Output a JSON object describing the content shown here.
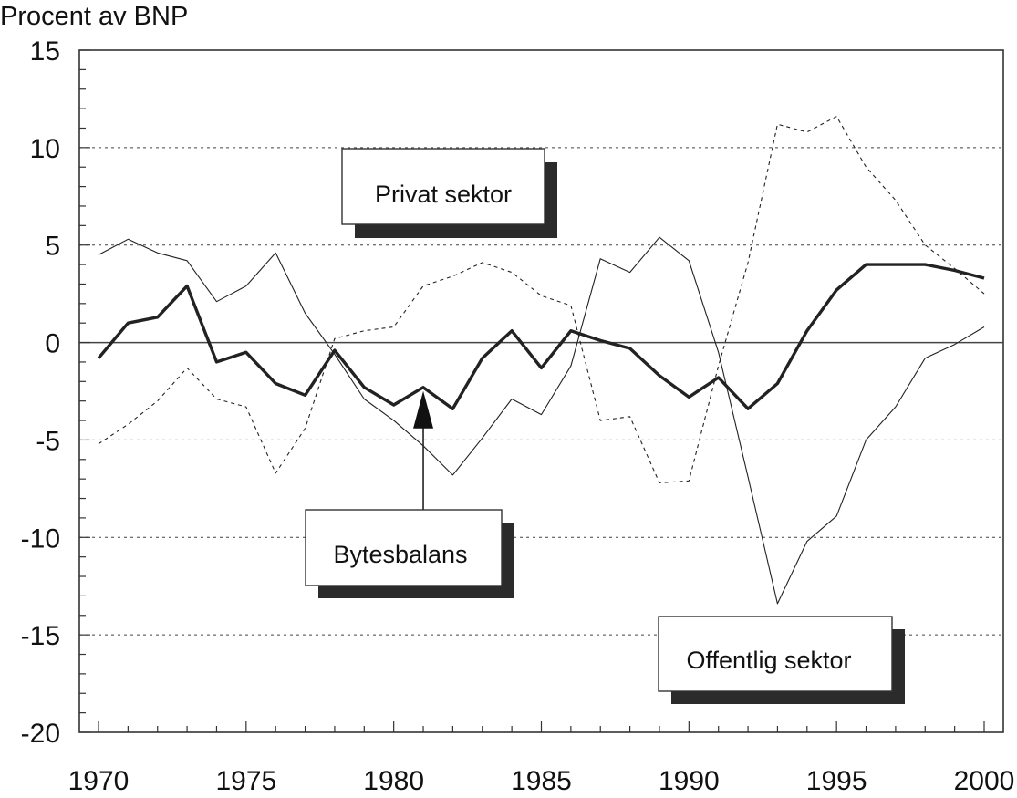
{
  "chart_data": {
    "type": "line",
    "title": "",
    "ylabel": "Procent av BNP",
    "xlabel": "",
    "xlim": [
      1970,
      2000
    ],
    "ylim": [
      -20,
      15
    ],
    "x_ticks": [
      1970,
      1975,
      1980,
      1985,
      1990,
      1995,
      2000
    ],
    "y_ticks": [
      15,
      10,
      5,
      0,
      -5,
      -10,
      -15,
      -20
    ],
    "grid": "dashed horizontal lines at every 5",
    "x": [
      1970,
      1971,
      1972,
      1973,
      1974,
      1975,
      1976,
      1977,
      1978,
      1979,
      1980,
      1981,
      1982,
      1983,
      1984,
      1985,
      1986,
      1987,
      1988,
      1989,
      1990,
      1991,
      1992,
      1993,
      1994,
      1995,
      1996,
      1997,
      1998,
      1999,
      2000
    ],
    "series": [
      {
        "name": "Bytesbalans",
        "style": "thick solid",
        "color": "#222222",
        "values": [
          -0.8,
          1.0,
          1.3,
          2.9,
          -1.0,
          -0.5,
          -2.1,
          -2.7,
          -0.4,
          -2.3,
          -3.2,
          -2.3,
          -3.4,
          -0.8,
          0.6,
          -1.3,
          0.6,
          0.1,
          -0.3,
          -1.7,
          -2.8,
          -1.8,
          -3.4,
          -2.1,
          0.6,
          2.7,
          4.0,
          4.0,
          4.0,
          3.7,
          3.3
        ]
      },
      {
        "name": "Privat sektor",
        "style": "thin dashed",
        "color": "#222222",
        "values": [
          -5.2,
          -4.2,
          -3.0,
          -1.3,
          -2.9,
          -3.3,
          -6.7,
          -4.4,
          0.2,
          0.6,
          0.8,
          2.9,
          3.4,
          4.1,
          3.6,
          2.4,
          1.9,
          -4.0,
          -3.8,
          -7.2,
          -7.1,
          -1.2,
          4.1,
          11.2,
          10.8,
          11.6,
          9.0,
          7.3,
          5.0,
          3.8,
          2.5
        ]
      },
      {
        "name": "Offentlig sektor",
        "style": "thin solid",
        "color": "#222222",
        "values": [
          4.5,
          5.3,
          4.6,
          4.2,
          2.1,
          2.9,
          4.6,
          1.5,
          -0.6,
          -2.9,
          -4.0,
          -5.3,
          -6.8,
          -4.9,
          -2.9,
          -3.7,
          -1.2,
          4.3,
          3.6,
          5.4,
          4.2,
          -0.5,
          -6.9,
          -13.4,
          -10.2,
          -8.9,
          -5.0,
          -3.3,
          -0.8,
          -0.1,
          0.8
        ]
      }
    ],
    "annotations": [
      {
        "text": "Privat sektor"
      },
      {
        "text": "Bytesbalans",
        "arrow_to": {
          "x": 1981,
          "y": -2.3
        }
      },
      {
        "text": "Offentlig sektor"
      }
    ]
  }
}
